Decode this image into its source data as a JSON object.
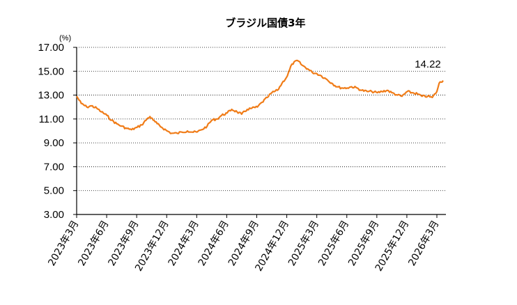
{
  "chart_data": {
    "type": "line",
    "title": "ブラジル国債3年",
    "y_unit": "(%)",
    "ylim": [
      3.0,
      17.0
    ],
    "y_ticks": [
      "3.00",
      "5.00",
      "7.00",
      "9.00",
      "11.00",
      "13.00",
      "15.00",
      "17.00"
    ],
    "grid": "horizontal dotted",
    "x_ticks": [
      "2023年3月",
      "2023年6月",
      "2023年9月",
      "2023年12月",
      "2024年3月",
      "2024年6月",
      "2024年9月",
      "2024年12月",
      "2025年3月",
      "2025年6月",
      "2025年9月",
      "2025年12月",
      "2026年3月"
    ],
    "end_label": "14.22",
    "series": [
      {
        "color": "#f07c18",
        "points": [
          [
            "2023-03",
            12.9
          ],
          [
            "2023-03-15",
            12.3
          ],
          [
            "2023-04",
            12.0
          ],
          [
            "2023-04-15",
            12.1
          ],
          [
            "2023-05",
            11.9
          ],
          [
            "2023-05-15",
            11.6
          ],
          [
            "2023-06",
            11.3
          ],
          [
            "2023-06-15",
            10.9
          ],
          [
            "2023-07",
            10.6
          ],
          [
            "2023-07-15",
            10.4
          ],
          [
            "2023-08",
            10.2
          ],
          [
            "2023-08-15",
            10.1
          ],
          [
            "2023-09",
            10.3
          ],
          [
            "2023-09-15",
            10.5
          ],
          [
            "2023-10",
            11.0
          ],
          [
            "2023-10-10",
            11.2
          ],
          [
            "2023-10-20",
            10.9
          ],
          [
            "2023-11",
            10.6
          ],
          [
            "2023-11-15",
            10.3
          ],
          [
            "2023-12",
            10.0
          ],
          [
            "2023-12-15",
            9.8
          ],
          [
            "2024-01",
            9.8
          ],
          [
            "2024-01-15",
            9.9
          ],
          [
            "2024-02",
            10.0
          ],
          [
            "2024-02-15",
            9.9
          ],
          [
            "2024-03",
            9.9
          ],
          [
            "2024-03-15",
            10.1
          ],
          [
            "2024-04",
            10.4
          ],
          [
            "2024-04-15",
            10.9
          ],
          [
            "2024-05",
            11.0
          ],
          [
            "2024-05-15",
            11.3
          ],
          [
            "2024-06",
            11.5
          ],
          [
            "2024-06-15",
            11.8
          ],
          [
            "2024-07",
            11.6
          ],
          [
            "2024-07-15",
            11.4
          ],
          [
            "2024-08",
            11.8
          ],
          [
            "2024-08-15",
            11.9
          ],
          [
            "2024-09",
            12.0
          ],
          [
            "2024-09-15",
            12.4
          ],
          [
            "2024-10",
            12.8
          ],
          [
            "2024-10-15",
            13.2
          ],
          [
            "2024-11",
            13.4
          ],
          [
            "2024-11-15",
            14.0
          ],
          [
            "2024-12",
            14.6
          ],
          [
            "2024-12-15",
            15.6
          ],
          [
            "2025-01",
            15.9
          ],
          [
            "2025-01-15",
            15.5
          ],
          [
            "2025-02",
            15.2
          ],
          [
            "2025-02-15",
            14.9
          ],
          [
            "2025-03",
            14.8
          ],
          [
            "2025-03-15",
            14.6
          ],
          [
            "2025-04",
            14.3
          ],
          [
            "2025-04-15",
            14.0
          ],
          [
            "2025-05",
            13.7
          ],
          [
            "2025-05-15",
            13.6
          ],
          [
            "2025-06",
            13.6
          ],
          [
            "2025-06-15",
            13.7
          ],
          [
            "2025-07",
            13.6
          ],
          [
            "2025-07-15",
            13.4
          ],
          [
            "2025-08",
            13.3
          ],
          [
            "2025-08-15",
            13.3
          ],
          [
            "2025-09",
            13.2
          ],
          [
            "2025-09-15",
            13.3
          ],
          [
            "2025-10",
            13.4
          ],
          [
            "2025-10-15",
            13.2
          ],
          [
            "2025-11",
            13.0
          ],
          [
            "2025-11-15",
            12.9
          ],
          [
            "2025-12",
            13.3
          ],
          [
            "2025-12-15",
            13.2
          ],
          [
            "2026-01",
            13.1
          ],
          [
            "2026-01-15",
            12.9
          ],
          [
            "2026-02",
            12.9
          ],
          [
            "2026-02-15",
            12.8
          ],
          [
            "2026-03",
            13.3
          ],
          [
            "2026-03-08",
            14.0
          ],
          [
            "2026-03-20",
            14.22
          ]
        ]
      }
    ]
  }
}
